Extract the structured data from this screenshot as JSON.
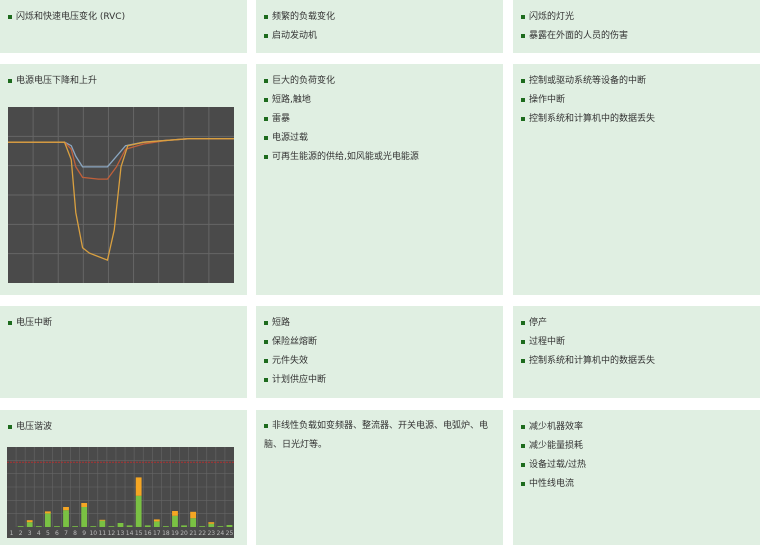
{
  "rows": [
    {
      "phenomenon": [
        "闪烁和快速电压变化 (RVC)"
      ],
      "causes": [
        "频繁的负载变化",
        "启动发动机"
      ],
      "effects": [
        "闪烁的灯光",
        "暴露在外面的人员的伤害"
      ]
    },
    {
      "phenomenon": [
        "电源电压下降和上升"
      ],
      "causes": [
        "巨大的负荷变化",
        "短路,触地",
        "雷暴",
        "电源过载",
        "可再生能源的供给,如风能或光电能源"
      ],
      "effects": [
        "控制或驱动系统等设备的中断",
        "操作中断",
        "控制系统和计算机中的数据丢失"
      ]
    },
    {
      "phenomenon": [
        "电压中断"
      ],
      "causes": [
        "短路",
        "保险丝熔断",
        "元件失效",
        "计划供应中断"
      ],
      "effects": [
        "停产",
        "过程中断",
        "控制系统和计算机中的数据丢失"
      ]
    },
    {
      "phenomenon": [
        "电压谐波"
      ],
      "causes": [
        "非线性负载如变频器、整流器、开关电源、电弧炉、电脑、日光灯等。"
      ],
      "effects": [
        "减少机器效率",
        "减少能量损耗",
        "设备过载/过热",
        "中性线电流"
      ]
    }
  ],
  "colors": {
    "cell_bg": "#e0efe2",
    "bullet": "#1d6b1d",
    "chart_bg": "#4a4a4a",
    "grid": "#666666",
    "limit": "#b03030",
    "harmonic_base": "#7ac143",
    "harmonic_top": "#f5a623"
  },
  "chart_data": [
    {
      "type": "line",
      "grid": true,
      "series": [
        {
          "color": "#8aa6c0",
          "x": [
            0,
            25,
            28,
            30,
            33,
            40,
            44,
            48,
            52,
            60,
            70,
            80,
            100
          ],
          "y": [
            80,
            80,
            78,
            72,
            66,
            66,
            66,
            72,
            78,
            80,
            81,
            82,
            82
          ]
        },
        {
          "color": "#c0603a",
          "x": [
            0,
            25,
            28,
            30,
            33,
            40,
            44,
            48,
            52,
            60,
            70,
            80,
            100
          ],
          "y": [
            80,
            80,
            76,
            66,
            60,
            59,
            59,
            66,
            76,
            79,
            81,
            82,
            82
          ]
        },
        {
          "color": "#d9a040",
          "x": [
            0,
            25,
            28,
            30,
            33,
            36,
            44,
            47,
            50,
            53,
            60,
            70,
            80,
            100
          ],
          "y": [
            80,
            80,
            70,
            40,
            20,
            17,
            13,
            30,
            66,
            78,
            80,
            81,
            82,
            82
          ]
        }
      ],
      "ylim": [
        0,
        100
      ],
      "xlim": [
        0,
        100
      ]
    },
    {
      "type": "bar",
      "stacked": true,
      "grid": true,
      "limit_line": 8.1,
      "ylim": [
        0,
        10
      ],
      "categories": [
        "1",
        "2",
        "3",
        "4",
        "5",
        "6",
        "7",
        "8",
        "9",
        "10",
        "11",
        "12",
        "13",
        "14",
        "15",
        "16",
        "17",
        "18",
        "19",
        "20",
        "21",
        "22",
        "23",
        "24",
        "25"
      ],
      "series": [
        {
          "values": [
            0,
            0.1,
            0.6,
            0.1,
            1.7,
            0.1,
            2.1,
            0.1,
            2.5,
            0.1,
            0.8,
            0.1,
            0.5,
            0.2,
            3.9,
            0.2,
            0.7,
            0.1,
            1.4,
            0.2,
            1.1,
            0.1,
            0.4,
            0.1,
            0.25
          ]
        },
        {
          "values": [
            0,
            0,
            0.25,
            0,
            0.25,
            0,
            0.4,
            0,
            0.5,
            0,
            0.1,
            0,
            0,
            0,
            2.3,
            0,
            0.25,
            0,
            0.6,
            0,
            0.8,
            0,
            0.2,
            0,
            0
          ]
        }
      ]
    }
  ]
}
